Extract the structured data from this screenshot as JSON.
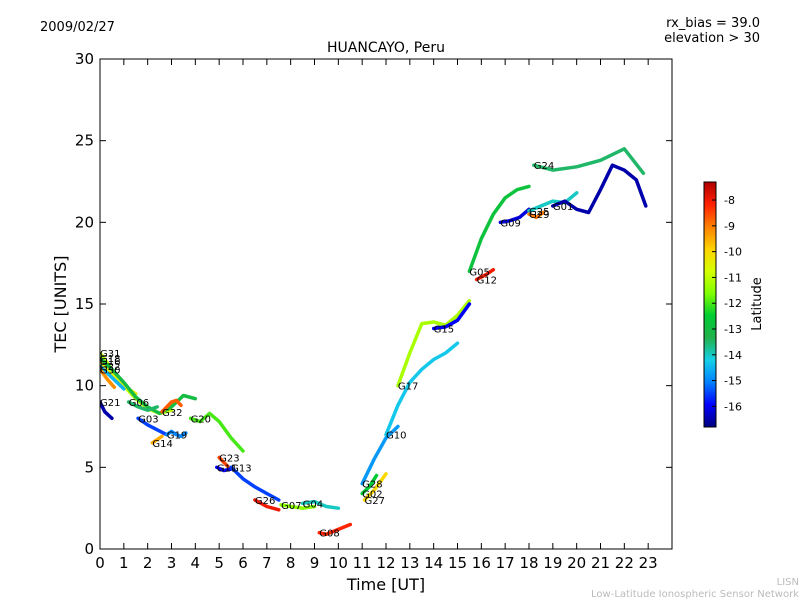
{
  "header": {
    "date": "2009/02/27",
    "rx_bias": "rx_bias = 39.0",
    "elevation": "elevation > 30"
  },
  "footer": {
    "line1": "LISN",
    "line2": "Low-Latitude Ionospheric Sensor Network"
  },
  "colors": {
    "footer_text": "#bbbbbb",
    "colormap": [
      "#00007f",
      "#0000ff",
      "#0080ff",
      "#15d0e8",
      "#22b14c",
      "#00cc33",
      "#7fff00",
      "#d6ff00",
      "#ffd200",
      "#ff7f00",
      "#ff2000",
      "#b00000"
    ]
  },
  "chart_data": {
    "type": "line",
    "title": "HUANCAYO, Peru",
    "xlabel": "Time [UT]",
    "ylabel": "TEC [UNITS]",
    "xlim": [
      0,
      24
    ],
    "ylim": [
      0,
      30
    ],
    "xticks": [
      "0",
      "1",
      "2",
      "3",
      "4",
      "5",
      "6",
      "7",
      "8",
      "9",
      "10",
      "11",
      "12",
      "13",
      "14",
      "15",
      "16",
      "17",
      "18",
      "19",
      "20",
      "21",
      "22",
      "23"
    ],
    "yticks": [
      "0",
      "5",
      "10",
      "15",
      "20",
      "25",
      "30"
    ],
    "grid": false,
    "colorbar": {
      "label": "Latitude",
      "range": [
        -16.8,
        -7.3
      ],
      "ticks": [
        "-8",
        "-9",
        "-10",
        "-11",
        "-12",
        "-13",
        "-14",
        "-15",
        "-16"
      ]
    },
    "series": [
      {
        "name": "G31",
        "lat": -11.0,
        "x": [
          0.0,
          0.5,
          1.0,
          1.5,
          2.0,
          2.5,
          3.0
        ],
        "y": [
          12.0,
          11.0,
          10.0,
          9.2,
          8.6,
          8.3,
          8.5
        ]
      },
      {
        "name": "G16",
        "lat": -10.5,
        "x": [
          0.0,
          0.5,
          1.0,
          1.5
        ],
        "y": [
          11.5,
          10.8,
          10.0,
          9.5
        ]
      },
      {
        "name": "G18",
        "lat": -13.0,
        "x": [
          0.0,
          0.5,
          1.0,
          1.5,
          2.0,
          2.5,
          3.0,
          3.5,
          4.0
        ],
        "y": [
          11.7,
          11.0,
          10.2,
          9.3,
          8.7,
          8.3,
          8.7,
          9.4,
          9.2
        ]
      },
      {
        "name": "G22",
        "lat": -14.5,
        "x": [
          0.0,
          0.5,
          1.0
        ],
        "y": [
          11.2,
          10.5,
          9.8
        ]
      },
      {
        "name": "G30",
        "lat": -9.2,
        "x": [
          0.0,
          0.3,
          0.6
        ],
        "y": [
          11.0,
          10.4,
          9.9
        ]
      },
      {
        "name": "G21",
        "lat": -16.5,
        "x": [
          0.0,
          0.2,
          0.5
        ],
        "y": [
          9.0,
          8.4,
          8.0
        ]
      },
      {
        "name": "G06",
        "lat": -13.5,
        "x": [
          1.2,
          1.6,
          2.0,
          2.4
        ],
        "y": [
          9.0,
          8.7,
          8.5,
          8.7
        ]
      },
      {
        "name": "G03",
        "lat": -15.5,
        "x": [
          1.6,
          2.0,
          2.4,
          2.8
        ],
        "y": [
          8.0,
          7.6,
          7.3,
          7.0
        ]
      },
      {
        "name": "G14",
        "lat": -9.5,
        "x": [
          2.2,
          2.4,
          2.6
        ],
        "y": [
          6.5,
          6.7,
          6.9
        ]
      },
      {
        "name": "G32",
        "lat": -8.7,
        "x": [
          2.6,
          3.0,
          3.2,
          3.4
        ],
        "y": [
          8.4,
          9.0,
          9.1,
          8.8
        ]
      },
      {
        "name": "G19",
        "lat": -15.0,
        "x": [
          2.8,
          3.0,
          3.2,
          3.4,
          3.6
        ],
        "y": [
          7.0,
          7.2,
          7.0,
          6.9,
          7.1
        ]
      },
      {
        "name": "G20",
        "lat": -12.0,
        "x": [
          3.8,
          4.2,
          4.6,
          5.0,
          5.5,
          6.0
        ],
        "y": [
          8.0,
          7.8,
          8.3,
          7.8,
          6.8,
          6.0
        ]
      },
      {
        "name": "G23",
        "lat": -8.5,
        "x": [
          5.0,
          5.2,
          5.4
        ],
        "y": [
          5.6,
          5.3,
          5.0
        ]
      },
      {
        "name": "G11",
        "lat": -16.0,
        "x": [
          4.9,
          5.2,
          5.5
        ],
        "y": [
          5.0,
          4.8,
          4.9
        ]
      },
      {
        "name": "G13",
        "lat": -15.5,
        "x": [
          5.5,
          6.0,
          6.5,
          7.0,
          7.5
        ],
        "y": [
          5.0,
          4.3,
          3.8,
          3.4,
          3.0
        ]
      },
      {
        "name": "G26",
        "lat": -8.0,
        "x": [
          6.5,
          7.0,
          7.5
        ],
        "y": [
          3.0,
          2.6,
          2.4
        ]
      },
      {
        "name": "G07",
        "lat": -11.5,
        "x": [
          7.6,
          8.0,
          8.5,
          9.0
        ],
        "y": [
          2.7,
          2.6,
          2.5,
          2.6
        ]
      },
      {
        "name": "G04",
        "lat": -14.0,
        "x": [
          8.5,
          9.0,
          9.5,
          10.0
        ],
        "y": [
          2.8,
          2.9,
          2.6,
          2.5
        ]
      },
      {
        "name": "G08",
        "lat": -8.2,
        "x": [
          9.2,
          9.5,
          10.0,
          10.5
        ],
        "y": [
          1.0,
          0.9,
          1.2,
          1.5
        ]
      },
      {
        "name": "G28",
        "lat": -14.8,
        "x": [
          11.0,
          11.5,
          12.0,
          12.5
        ],
        "y": [
          4.0,
          5.5,
          6.8,
          7.5
        ]
      },
      {
        "name": "G02",
        "lat": -12.5,
        "x": [
          11.0,
          11.3,
          11.6
        ],
        "y": [
          3.4,
          3.8,
          4.5
        ]
      },
      {
        "name": "G27",
        "lat": -10.0,
        "x": [
          11.1,
          11.5,
          12.0
        ],
        "y": [
          3.0,
          3.6,
          4.6
        ]
      },
      {
        "name": "G10",
        "lat": -14.3,
        "x": [
          12.0,
          12.5,
          13.0,
          13.5,
          14.0,
          14.5,
          15.0
        ],
        "y": [
          7.0,
          8.8,
          10.2,
          11.0,
          11.6,
          12.0,
          12.6
        ]
      },
      {
        "name": "G17",
        "lat": -11.2,
        "x": [
          12.5,
          13.0,
          13.5,
          14.0,
          14.5,
          15.0,
          15.5
        ],
        "y": [
          10.0,
          12.0,
          13.8,
          13.9,
          13.7,
          14.3,
          15.2
        ]
      },
      {
        "name": "G15",
        "lat": -16.0,
        "x": [
          14.0,
          14.5,
          15.0,
          15.5
        ],
        "y": [
          13.5,
          13.6,
          14.0,
          15.0
        ]
      },
      {
        "name": "G12",
        "lat": -8.0,
        "x": [
          15.8,
          16.2,
          16.5
        ],
        "y": [
          16.5,
          16.8,
          17.1
        ]
      },
      {
        "name": "G05",
        "lat": -12.8,
        "x": [
          15.5,
          16.0,
          16.5,
          17.0,
          17.5,
          18.0
        ],
        "y": [
          17.0,
          19.0,
          20.5,
          21.5,
          22.0,
          22.2
        ]
      },
      {
        "name": "G09",
        "lat": -16.2,
        "x": [
          16.8,
          17.2,
          17.6,
          18.0
        ],
        "y": [
          20.0,
          20.1,
          20.3,
          20.8
        ]
      },
      {
        "name": "G25",
        "lat": -14.0,
        "x": [
          18.0,
          18.5,
          19.0,
          19.5,
          20.0
        ],
        "y": [
          20.7,
          21.0,
          21.3,
          21.2,
          21.8
        ]
      },
      {
        "name": "G29",
        "lat": -9.0,
        "x": [
          18.0,
          18.3,
          18.6
        ],
        "y": [
          20.5,
          20.3,
          20.6
        ]
      },
      {
        "name": "G24",
        "lat": -13.5,
        "x": [
          18.2,
          19.0,
          20.0,
          21.0,
          22.0,
          22.8
        ],
        "y": [
          23.5,
          23.2,
          23.4,
          23.8,
          24.5,
          23.0
        ]
      },
      {
        "name": "G01",
        "lat": -16.5,
        "x": [
          19.0,
          19.5,
          20.0,
          20.5,
          21.0,
          21.5,
          22.0,
          22.5,
          22.9
        ],
        "y": [
          21.0,
          21.3,
          20.8,
          20.6,
          22.0,
          23.5,
          23.2,
          22.6,
          21.0
        ]
      }
    ]
  }
}
